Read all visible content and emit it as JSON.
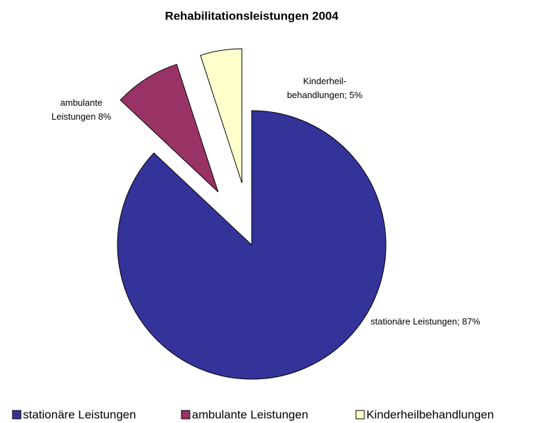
{
  "chart_data": {
    "type": "pie",
    "title": "Rehabilitationsleistungen 2004",
    "categories": [
      "stationäre Leistungen",
      "ambulante Leistungen",
      "Kinderheilbehandlungen"
    ],
    "values": [
      87,
      8,
      5
    ],
    "value_labels": [
      "stationäre Leistungen; 87%",
      "ambulante\nLeistungen 8%",
      "Kinderheil-\nbehandlungen; 5%"
    ],
    "colors": [
      "#333399",
      "#993366",
      "#ffffcc"
    ],
    "legend": "bottom"
  }
}
